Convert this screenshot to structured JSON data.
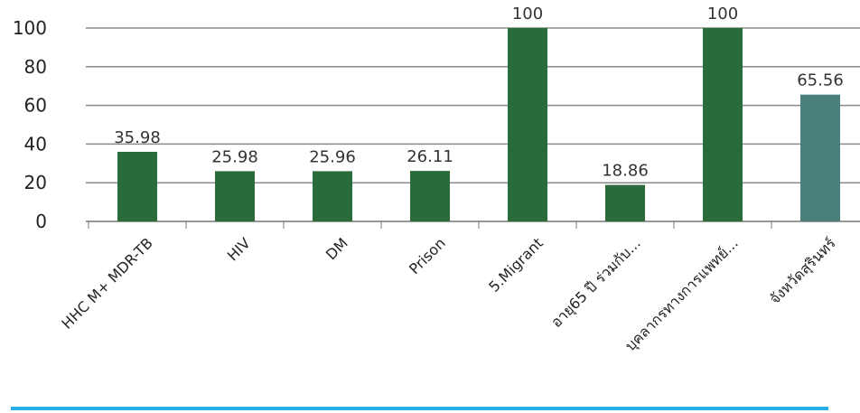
{
  "chart_data": {
    "type": "bar",
    "title": "",
    "xlabel": "",
    "ylabel": "",
    "ylim": [
      0,
      100
    ],
    "yticks": [
      0,
      20,
      40,
      60,
      80,
      100
    ],
    "grid": "horizontal",
    "categories": [
      "HHC M+ MDR-TB",
      "HIV",
      "DM",
      "Prison",
      "5.Migrant",
      "อายุ65 ปี ร่วมกับ...",
      "บุคลากรทางการแพทย์...",
      "จังหวัดสุรินทร์"
    ],
    "values": [
      35.98,
      25.98,
      25.96,
      26.11,
      100,
      18.86,
      100,
      65.56
    ],
    "value_labels": [
      "35.98",
      "25.98",
      "25.96",
      "26.11",
      "100",
      "18.86",
      "100",
      "65.56"
    ],
    "colors": [
      "#2a6b3c",
      "#2a6b3c",
      "#2a6b3c",
      "#2a6b3c",
      "#2a6b3c",
      "#2a6b3c",
      "#2a6b3c",
      "#4a7f7b"
    ]
  }
}
